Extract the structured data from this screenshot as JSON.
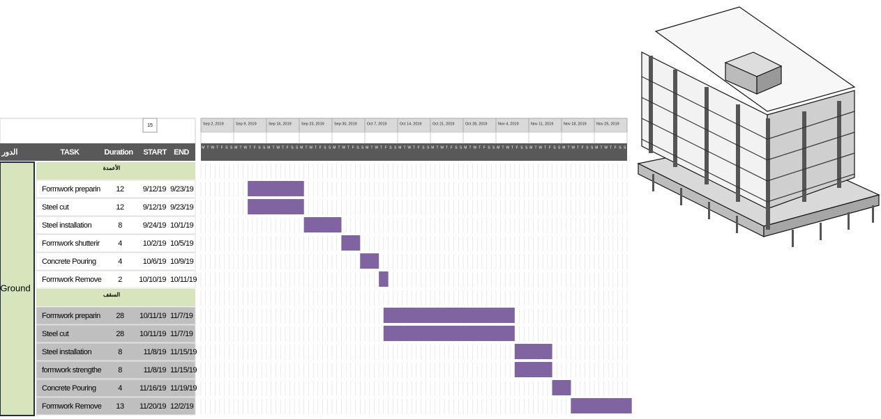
{
  "top_value": 15,
  "header": {
    "floor": "الدور",
    "task": "TASK",
    "duration": "Duration",
    "start": "START",
    "end": "END"
  },
  "floor": "Ground",
  "weeks": [
    "Sep 2, 2019",
    "Sep 9, 2019",
    "Sep 16, 2019",
    "Sep 23, 2019",
    "Sep 30, 2019",
    "Oct 7, 2019",
    "Oct 14, 2019",
    "Oct 21, 2019",
    "Oct 28, 2019",
    "Nov 4, 2019",
    "Nov 11, 2019",
    "Nov 18, 2019",
    "Nov 25, 2019"
  ],
  "day_letters": [
    "M",
    "T",
    "W",
    "T",
    "F",
    "S",
    "S"
  ],
  "sections": [
    {
      "label": "الأعمدة",
      "tasks": [
        {
          "task": "Formwork preparin",
          "duration": 12,
          "start": "9/12/19",
          "end": "9/23/19"
        },
        {
          "task": "Steel cut",
          "duration": 12,
          "start": "9/12/19",
          "end": "9/23/19"
        },
        {
          "task": "Steel installation",
          "duration": 8,
          "start": "9/24/19",
          "end": "10/1/19"
        },
        {
          "task": "Formwork shutterir",
          "duration": 4,
          "start": "10/2/19",
          "end": "10/5/19"
        },
        {
          "task": "Concrete Pouring",
          "duration": 4,
          "start": "10/6/19",
          "end": "10/9/19"
        },
        {
          "task": "Formwork Remove",
          "duration": 2,
          "start": "10/10/19",
          "end": "10/11/19"
        }
      ]
    },
    {
      "label": "السقف",
      "tasks": [
        {
          "task": "Formwork preparin",
          "duration": 28,
          "start": "10/11/19",
          "end": "11/7/19"
        },
        {
          "task": "Steel cut",
          "duration": 28,
          "start": "10/11/19",
          "end": "11/7/19"
        },
        {
          "task": "Steel installation",
          "duration": 8,
          "start": "11/8/19",
          "end": "11/15/19"
        },
        {
          "task": "formwork strengthe",
          "duration": 8,
          "start": "11/8/19",
          "end": "11/15/19"
        },
        {
          "task": "Concrete Pouring",
          "duration": 4,
          "start": "11/16/19",
          "end": "11/19/19"
        },
        {
          "task": "Formwork Remove",
          "duration": 13,
          "start": "11/20/19",
          "end": "12/2/19"
        }
      ]
    }
  ]
}
